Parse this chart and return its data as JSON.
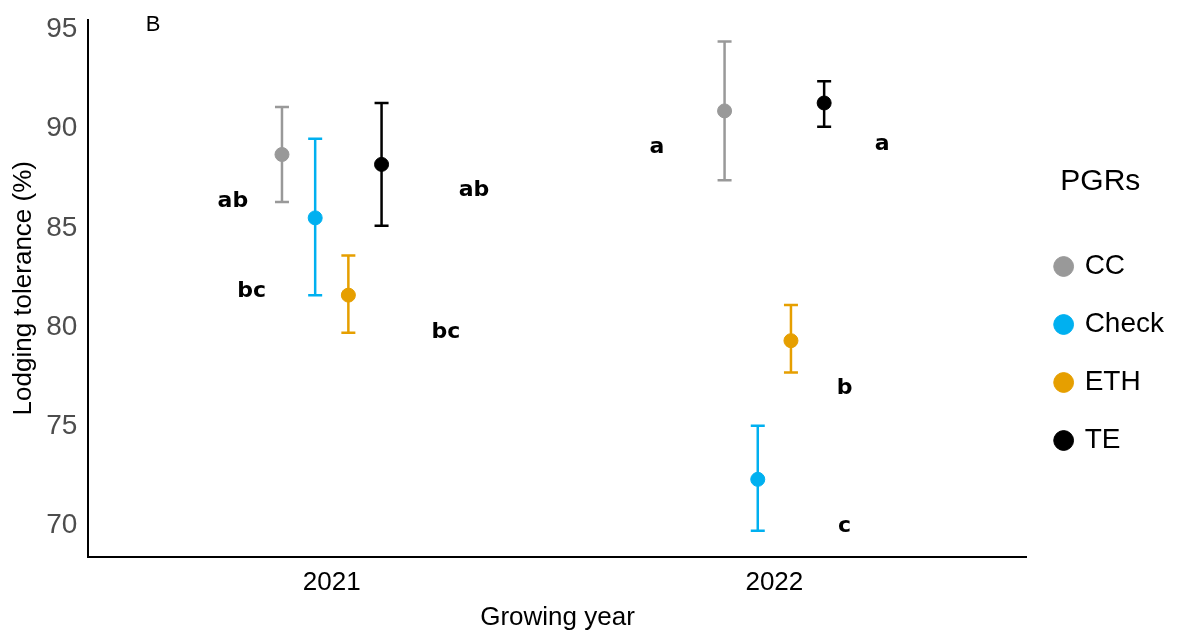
{
  "chart_data": {
    "type": "scatter",
    "xlabel": "Growing year",
    "ylabel": "Lodging tolerance (%)",
    "legend_title": "PGRs",
    "categories": [
      "2021",
      "2022"
    ],
    "series": [
      {
        "name": "CC",
        "color": "#999999",
        "values": [
          88.7,
          90.9
        ],
        "errors": [
          [
            86.3,
            91.1
          ],
          [
            87.4,
            94.4
          ]
        ]
      },
      {
        "name": "Check",
        "color": "#00b0f0",
        "values": [
          85.5,
          72.3
        ],
        "errors": [
          [
            81.6,
            89.5
          ],
          [
            69.7,
            75.0
          ]
        ]
      },
      {
        "name": "ETH",
        "color": "#e69f00",
        "values": [
          81.6,
          79.3
        ],
        "errors": [
          [
            79.7,
            83.6
          ],
          [
            77.7,
            81.1
          ]
        ]
      },
      {
        "name": "TE",
        "color": "#000000",
        "values": [
          88.2,
          91.3
        ],
        "errors": [
          [
            85.1,
            91.3
          ],
          [
            90.1,
            92.4
          ]
        ]
      }
    ],
    "ylim": [
      68.4,
      95.5
    ],
    "yticks": [
      70,
      75,
      80,
      85,
      90,
      95
    ],
    "grid": false,
    "legend": "right",
    "marker": "circle",
    "annotations": [
      "B",
      "ab",
      "ab",
      "bc",
      "bc",
      "a",
      "a",
      "b",
      "c"
    ]
  }
}
